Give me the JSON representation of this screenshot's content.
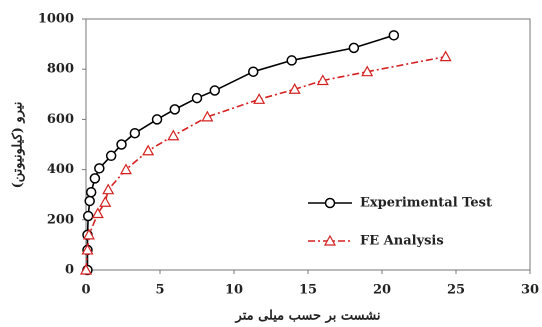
{
  "chart_data": {
    "type": "line",
    "x_label": "نشست بر حسب میلی متر",
    "y_label": "نیرو (کیلونیوتن)",
    "xlim": [
      0,
      30
    ],
    "xticks": [
      0,
      5,
      10,
      15,
      20,
      25,
      30
    ],
    "ylim": [
      0,
      1000
    ],
    "yticks": [
      0,
      200,
      400,
      600,
      800,
      1000
    ],
    "grid": false,
    "legend": "lower right",
    "series": [
      {
        "name": "Experimental Test",
        "color": "#000000",
        "marker": "circle",
        "line": "solid",
        "x": [
          0.1,
          0.1,
          0.1,
          0.15,
          0.25,
          0.35,
          0.6,
          0.9,
          1.7,
          2.4,
          3.3,
          4.8,
          6.0,
          7.5,
          8.7,
          11.3,
          13.9,
          18.1,
          20.8
        ],
        "values": [
          0,
          80,
          140,
          215,
          275,
          310,
          365,
          405,
          455,
          500,
          545,
          600,
          640,
          685,
          715,
          790,
          835,
          885,
          935
        ]
      },
      {
        "name": "FE Analysis",
        "color": "#d42020",
        "marker": "triangle",
        "line": "dashdot",
        "x": [
          0,
          0.1,
          0.2,
          0.8,
          1.3,
          1.5,
          2.7,
          4.2,
          5.9,
          8.2,
          11.7,
          14.1,
          16.0,
          19.0,
          24.3
        ],
        "values": [
          0,
          80,
          140,
          225,
          270,
          320,
          400,
          475,
          535,
          610,
          680,
          720,
          755,
          790,
          850
        ]
      }
    ]
  }
}
